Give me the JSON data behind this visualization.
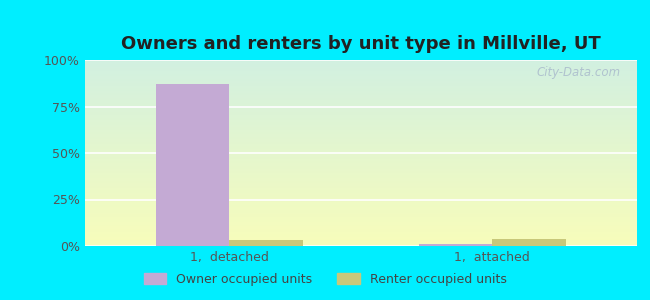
{
  "title": "Owners and renters by unit type in Millville, UT",
  "categories": [
    "1,  detached",
    "1,  attached"
  ],
  "owner_values": [
    87,
    1
  ],
  "renter_values": [
    3,
    4
  ],
  "owner_color": "#c4aad4",
  "renter_color": "#c8c87a",
  "bar_width": 0.28,
  "ylim": [
    0,
    100
  ],
  "yticks": [
    0,
    25,
    50,
    75,
    100
  ],
  "ytick_labels": [
    "0%",
    "25%",
    "50%",
    "75%",
    "100%"
  ],
  "legend_owner": "Owner occupied units",
  "legend_renter": "Renter occupied units",
  "title_fontsize": 13,
  "tick_fontsize": 9,
  "legend_fontsize": 9,
  "outer_background": "#00eeff",
  "watermark": "City-Data.com"
}
